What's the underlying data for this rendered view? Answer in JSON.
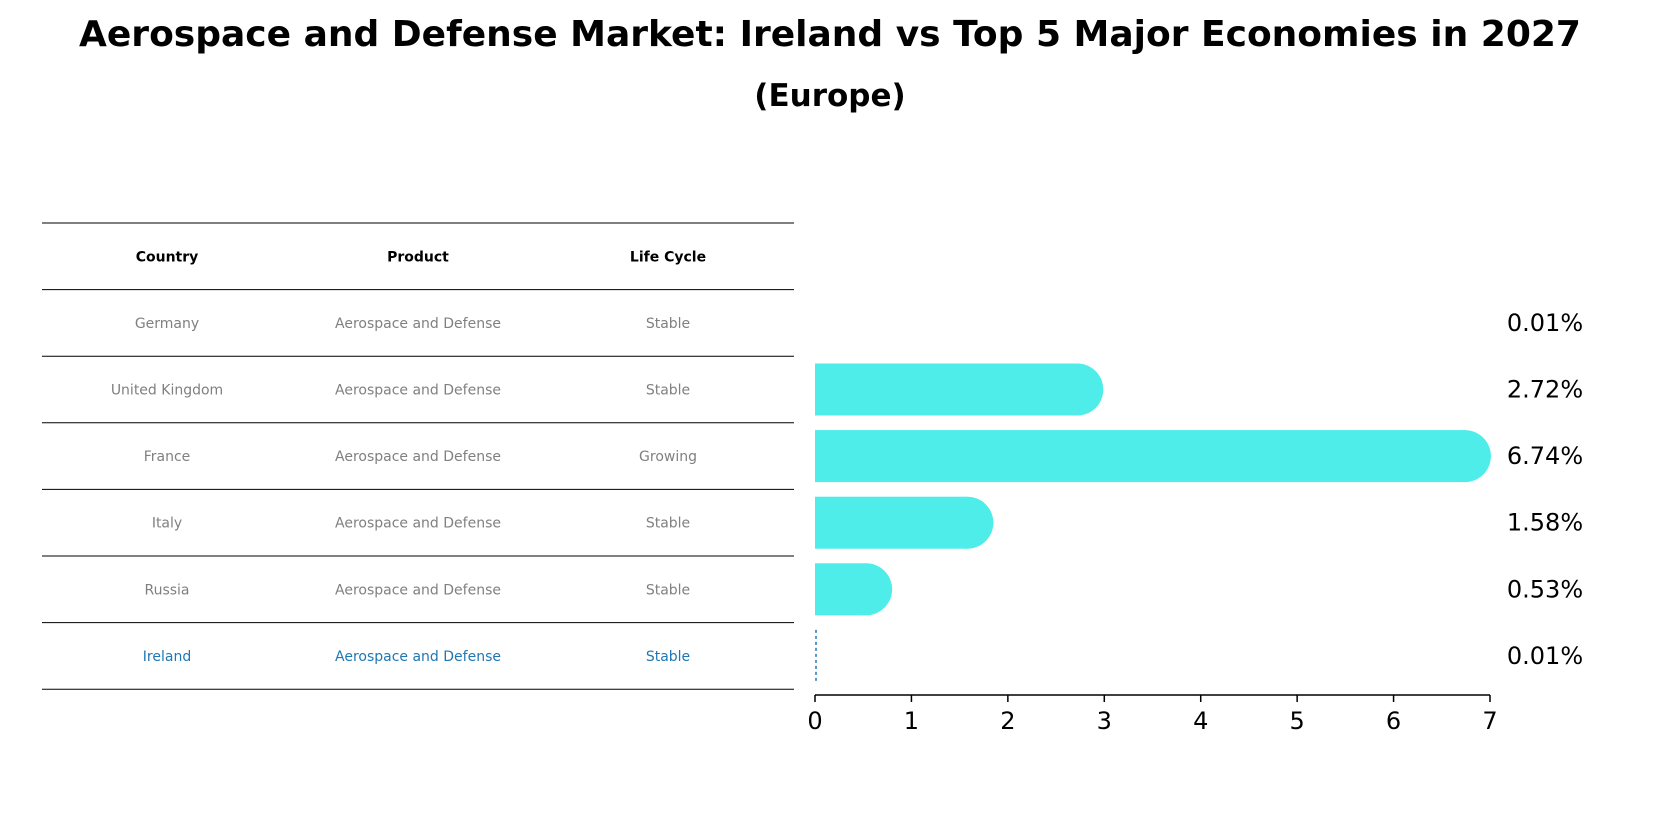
{
  "title": "Aerospace and Defense Market: Ireland vs Top 5 Major Economies in 2027",
  "subtitle": "(Europe)",
  "table": {
    "headers": [
      "Country",
      "Product",
      "Life Cycle"
    ],
    "rows": [
      {
        "country": "Germany",
        "product": "Aerospace and Defense",
        "life_cycle": "Stable",
        "highlight": false
      },
      {
        "country": "United Kingdom",
        "product": "Aerospace and Defense",
        "life_cycle": "Stable",
        "highlight": false
      },
      {
        "country": "France",
        "product": "Aerospace and Defense",
        "life_cycle": "Growing",
        "highlight": false
      },
      {
        "country": "Italy",
        "product": "Aerospace and Defense",
        "life_cycle": "Stable",
        "highlight": false
      },
      {
        "country": "Russia",
        "product": "Aerospace and Defense",
        "life_cycle": "Stable",
        "highlight": false
      },
      {
        "country": "Ireland",
        "product": "Aerospace and Defense",
        "life_cycle": "Stable",
        "highlight": true
      }
    ]
  },
  "chart_data": {
    "type": "bar",
    "orientation": "horizontal",
    "categories": [
      "Germany",
      "United Kingdom",
      "France",
      "Italy",
      "Russia",
      "Ireland"
    ],
    "values": [
      0.01,
      2.72,
      6.74,
      1.58,
      0.53,
      0.01
    ],
    "value_labels": [
      "0.01%",
      "2.72%",
      "6.74%",
      "1.58%",
      "0.53%",
      "0.01%"
    ],
    "xlim": [
      0,
      7
    ],
    "xticks": [
      0,
      1,
      2,
      3,
      4,
      5,
      6,
      7
    ],
    "grid": false,
    "bar_color": "#4EEDEA",
    "highlight_color": "#1f77b4"
  }
}
